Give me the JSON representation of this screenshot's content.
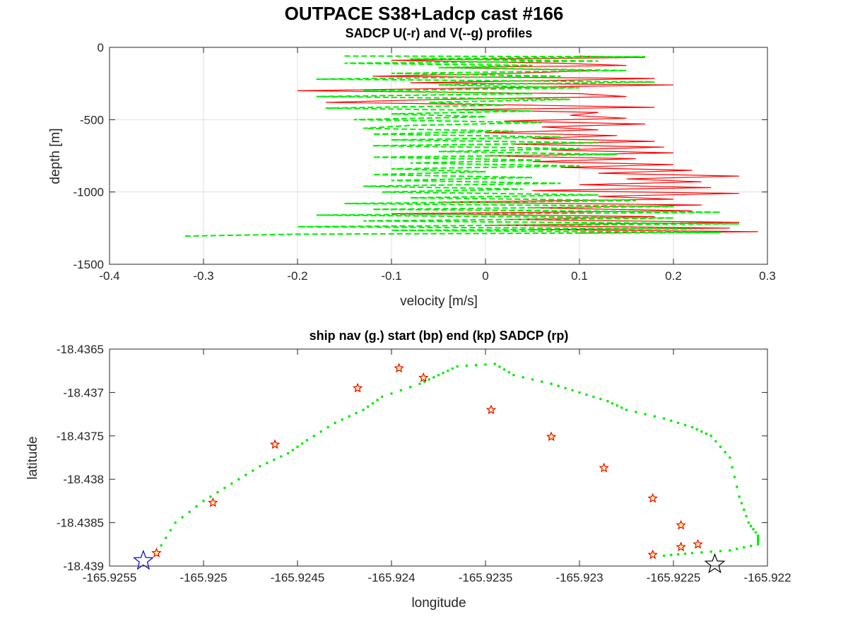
{
  "figure": {
    "title": "OUTPACE S38+Ladcp cast #166"
  },
  "colors": {
    "u_profile": "#ff0000",
    "v_profile": "#00ee00",
    "ship_nav": "#00ee00",
    "start_marker": "#0000cc",
    "end_marker": "#000000",
    "sadcp_marker": "#ee0000",
    "sadcp_fill": "#ffff99",
    "grid": "#dfdfdf"
  },
  "chart_data": [
    {
      "type": "line",
      "title": "SADCP U(-r) and V(--g) profiles",
      "xlabel": "velocity [m/s]",
      "ylabel": "depth [m]",
      "xlim": [
        -0.4,
        0.3
      ],
      "ylim": [
        -1500,
        0
      ],
      "xticks": [
        -0.4,
        -0.3,
        -0.2,
        -0.1,
        0,
        0.1,
        0.2,
        0.3
      ],
      "xtick_labels": [
        "-0.4",
        "-0.3",
        "-0.2",
        "-0.1",
        "0",
        "0.1",
        "0.2",
        "0.3"
      ],
      "yticks": [
        -1500,
        -1000,
        -500,
        0
      ],
      "ytick_labels": [
        "-1500",
        "-1000",
        "-500",
        "0"
      ],
      "grid": true,
      "series": [
        {
          "style": "solid-red",
          "points": [
            [
              0.1,
              -60
            ],
            [
              0.17,
              -70
            ],
            [
              0.02,
              -80
            ],
            [
              -0.1,
              -90
            ],
            [
              0.08,
              -110
            ],
            [
              0.15,
              -125
            ],
            [
              -0.05,
              -140
            ],
            [
              0.12,
              -160
            ],
            [
              0.03,
              -180
            ],
            [
              -0.12,
              -200
            ],
            [
              0.18,
              -215
            ],
            [
              0.06,
              -230
            ],
            [
              -0.08,
              -245
            ],
            [
              0.2,
              -260
            ],
            [
              0.0,
              -280
            ],
            [
              -0.2,
              -300
            ],
            [
              0.1,
              -320
            ],
            [
              0.15,
              -340
            ],
            [
              -0.05,
              -360
            ],
            [
              -0.17,
              -380
            ],
            [
              0.05,
              -400
            ],
            [
              0.18,
              -415
            ],
            [
              -0.03,
              -430
            ],
            [
              0.12,
              -450
            ],
            [
              0.09,
              -470
            ],
            [
              0.15,
              -490
            ],
            [
              0.02,
              -510
            ],
            [
              0.17,
              -530
            ],
            [
              0.06,
              -550
            ],
            [
              0.12,
              -570
            ],
            [
              0.0,
              -590
            ],
            [
              0.14,
              -610
            ],
            [
              0.05,
              -630
            ],
            [
              0.18,
              -650
            ],
            [
              0.03,
              -670
            ],
            [
              0.19,
              -690
            ],
            [
              0.07,
              -710
            ],
            [
              0.2,
              -730
            ],
            [
              0.0,
              -750
            ],
            [
              0.16,
              -770
            ],
            [
              0.05,
              -790
            ],
            [
              0.2,
              -810
            ],
            [
              0.08,
              -830
            ],
            [
              0.22,
              -850
            ],
            [
              0.12,
              -870
            ],
            [
              0.27,
              -890
            ],
            [
              0.15,
              -910
            ],
            [
              0.23,
              -930
            ],
            [
              0.1,
              -950
            ],
            [
              0.24,
              -970
            ],
            [
              0.05,
              -990
            ],
            [
              0.27,
              -1010
            ],
            [
              0.12,
              -1030
            ],
            [
              0.2,
              -1050
            ],
            [
              -0.05,
              -1070
            ],
            [
              0.23,
              -1090
            ],
            [
              0.05,
              -1110
            ],
            [
              0.22,
              -1130
            ],
            [
              -0.1,
              -1150
            ],
            [
              0.18,
              -1170
            ],
            [
              0.02,
              -1190
            ],
            [
              0.27,
              -1210
            ],
            [
              0.0,
              -1230
            ],
            [
              0.26,
              -1250
            ],
            [
              0.05,
              -1260
            ],
            [
              0.29,
              -1275
            ],
            [
              0.1,
              -1285
            ]
          ]
        },
        {
          "style": "dashed-green",
          "points": [
            [
              -0.15,
              -60
            ],
            [
              0.17,
              -65
            ],
            [
              -0.08,
              -80
            ],
            [
              0.12,
              -95
            ],
            [
              -0.15,
              -110
            ],
            [
              0.05,
              -125
            ],
            [
              -0.05,
              -140
            ],
            [
              0.15,
              -160
            ],
            [
              -0.1,
              -180
            ],
            [
              0.08,
              -200
            ],
            [
              -0.18,
              -220
            ],
            [
              0.18,
              -240
            ],
            [
              -0.05,
              -260
            ],
            [
              0.1,
              -280
            ],
            [
              -0.13,
              -300
            ],
            [
              0.05,
              -320
            ],
            [
              -0.18,
              -340
            ],
            [
              0.09,
              -360
            ],
            [
              -0.06,
              -380
            ],
            [
              0.02,
              -400
            ],
            [
              -0.17,
              -420
            ],
            [
              0.05,
              -440
            ],
            [
              -0.1,
              -460
            ],
            [
              0.0,
              -480
            ],
            [
              -0.14,
              -500
            ],
            [
              0.06,
              -520
            ],
            [
              -0.08,
              -540
            ],
            [
              -0.13,
              -560
            ],
            [
              0.03,
              -580
            ],
            [
              -0.12,
              -600
            ],
            [
              0.08,
              -620
            ],
            [
              -0.1,
              -640
            ],
            [
              0.12,
              -660
            ],
            [
              -0.12,
              -680
            ],
            [
              0.1,
              -700
            ],
            [
              -0.05,
              -720
            ],
            [
              0.14,
              -740
            ],
            [
              -0.12,
              -760
            ],
            [
              0.06,
              -780
            ],
            [
              -0.08,
              -800
            ],
            [
              0.1,
              -820
            ],
            [
              -0.1,
              -840
            ],
            [
              0.0,
              -860
            ],
            [
              -0.12,
              -880
            ],
            [
              0.05,
              -900
            ],
            [
              -0.1,
              -920
            ],
            [
              0.08,
              -940
            ],
            [
              -0.13,
              -960
            ],
            [
              0.04,
              -980
            ],
            [
              -0.11,
              -1000
            ],
            [
              0.12,
              -1020
            ],
            [
              -0.08,
              -1040
            ],
            [
              0.16,
              -1060
            ],
            [
              -0.15,
              -1080
            ],
            [
              0.2,
              -1100
            ],
            [
              -0.12,
              -1120
            ],
            [
              0.25,
              -1140
            ],
            [
              -0.18,
              -1160
            ],
            [
              0.2,
              -1180
            ],
            [
              -0.13,
              -1200
            ],
            [
              0.27,
              -1220
            ],
            [
              -0.2,
              -1240
            ],
            [
              0.22,
              -1255
            ],
            [
              -0.1,
              -1265
            ],
            [
              0.25,
              -1280
            ],
            [
              -0.2,
              -1292
            ],
            [
              -0.32,
              -1305
            ]
          ]
        }
      ]
    },
    {
      "type": "scatter",
      "title": "ship nav (g.) start (bp) end (kp) SADCP (rp)",
      "xlabel": "longitude",
      "ylabel": "latitude",
      "xlim": [
        -165.9255,
        -165.922
      ],
      "ylim": [
        -18.439,
        -18.4365
      ],
      "xticks": [
        -165.9255,
        -165.925,
        -165.9245,
        -165.924,
        -165.9235,
        -165.923,
        -165.9225,
        -165.922
      ],
      "xtick_labels": [
        "-165.9255",
        "-165.925",
        "-165.9245",
        "-165.924",
        "-165.9235",
        "-165.923",
        "-165.9225",
        "-165.922"
      ],
      "yticks": [
        -18.439,
        -18.4385,
        -18.438,
        -18.4375,
        -18.437,
        -18.4365
      ],
      "ytick_labels": [
        "-18.439",
        "-18.4385",
        "-18.438",
        "-18.4375",
        "-18.437",
        "-18.4365"
      ],
      "grid": false,
      "ship_nav_path": [
        [
          -165.92525,
          -18.43885
        ],
        [
          -165.92515,
          -18.4385
        ],
        [
          -165.925,
          -18.43825
        ],
        [
          -165.92485,
          -18.43805
        ],
        [
          -165.9247,
          -18.43785
        ],
        [
          -165.92455,
          -18.4377
        ],
        [
          -165.92445,
          -18.43755
        ],
        [
          -165.9243,
          -18.43735
        ],
        [
          -165.92415,
          -18.4372
        ],
        [
          -165.92405,
          -18.43705
        ],
        [
          -165.92385,
          -18.4369
        ],
        [
          -165.92375,
          -18.4368
        ],
        [
          -165.92365,
          -18.4367
        ],
        [
          -165.92345,
          -18.43667
        ],
        [
          -165.92335,
          -18.4368
        ],
        [
          -165.92315,
          -18.4369
        ],
        [
          -165.923,
          -18.437
        ],
        [
          -165.92285,
          -18.4371
        ],
        [
          -165.92275,
          -18.4372
        ],
        [
          -165.92255,
          -18.4373
        ],
        [
          -165.9224,
          -18.4374
        ],
        [
          -165.9223,
          -18.4375
        ],
        [
          -165.9222,
          -18.43775
        ],
        [
          -165.92215,
          -18.4382
        ],
        [
          -165.9221,
          -18.4385
        ],
        [
          -165.92205,
          -18.43865
        ],
        [
          -165.92205,
          -18.43875
        ],
        [
          -165.9222,
          -18.43882
        ],
        [
          -165.9224,
          -18.43885
        ],
        [
          -165.92255,
          -18.43888
        ]
      ],
      "start": [
        -165.92532,
        -18.43894
      ],
      "end": [
        -165.92228,
        -18.43898
      ],
      "sadcp_points": [
        [
          -165.92525,
          -18.43885
        ],
        [
          -165.92495,
          -18.43827
        ],
        [
          -165.92462,
          -18.4376
        ],
        [
          -165.92418,
          -18.43695
        ],
        [
          -165.92396,
          -18.43672
        ],
        [
          -165.92383,
          -18.43683
        ],
        [
          -165.92347,
          -18.4372
        ],
        [
          -165.92315,
          -18.43751
        ],
        [
          -165.92287,
          -18.43787
        ],
        [
          -165.92261,
          -18.43822
        ],
        [
          -165.92246,
          -18.43853
        ],
        [
          -165.92246,
          -18.43878
        ],
        [
          -165.92237,
          -18.43875
        ],
        [
          -165.92261,
          -18.43887
        ]
      ]
    }
  ]
}
